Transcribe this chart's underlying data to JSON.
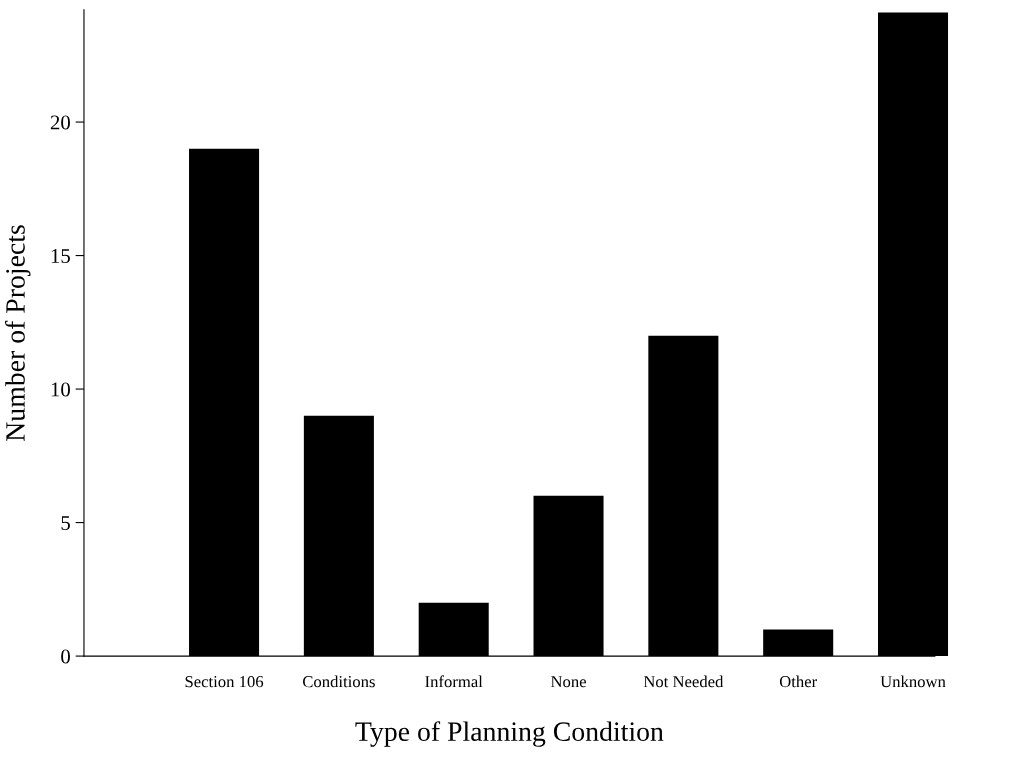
{
  "chart_data": {
    "type": "bar",
    "xlabel": "Type of Planning Condition",
    "ylabel": "Number of Projects",
    "categories": [
      "Section 106",
      "Conditions",
      "Informal",
      "None",
      "Not Needed",
      "Other",
      "Unknown"
    ],
    "values": [
      19,
      9,
      2,
      6,
      12,
      1,
      24.1
    ],
    "color": "#000000",
    "ylim": [
      0,
      24.2
    ],
    "yticks": [
      0,
      5,
      10,
      15,
      20
    ],
    "grid": false,
    "legend": false
  }
}
